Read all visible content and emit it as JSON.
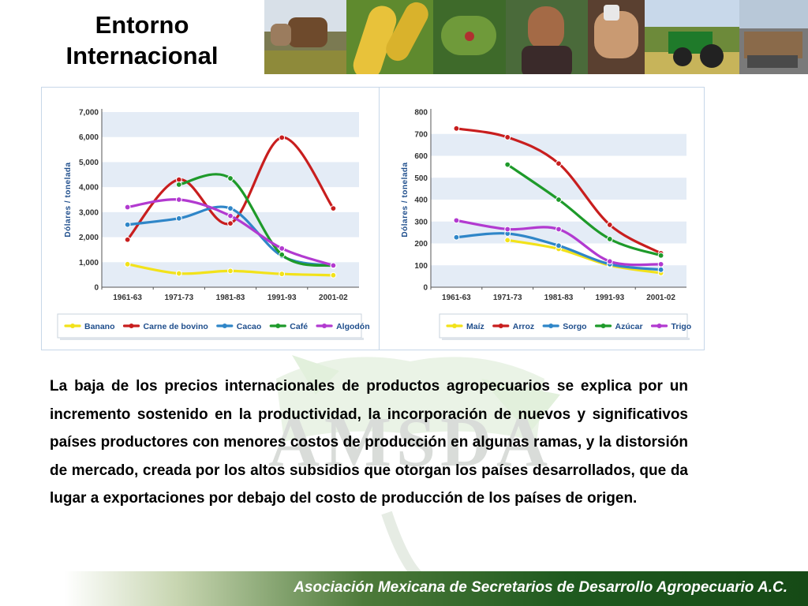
{
  "slide": {
    "title_line1": "Entorno",
    "title_line2": "Internacional",
    "body": "La baja de los precios internacionales de productos agropecuarios se explica por un incremento sostenido en la productividad, la incorporación de nuevos y significativos países productores con menores costos de producción en algunas ramas, y la distorsión de mercado, creada por los altos subsidios que otorgan los países desarrollados, que da lugar a exportaciones por debajo del costo de producción de los países de origen.",
    "footer": "Asociación Mexicana de Secretarios de Desarrollo Agropecuario A.C.",
    "watermark_text": "AMSDA"
  },
  "banner": {
    "photos": [
      "cattle",
      "corn",
      "coffee-plant",
      "farmer-woman",
      "coffee-beans-hands",
      "tractor",
      "cargo-port"
    ]
  },
  "colors": {
    "yellow": "#f2e21a",
    "red": "#c81e1e",
    "blue": "#2f86c8",
    "green": "#1e9a2a",
    "purple": "#b23ad0",
    "band": "#e4ecf6",
    "axis_label": "#1f4e8c",
    "footer_green": "#1f5a1f"
  },
  "chart_data": [
    {
      "type": "line",
      "ylabel": "Dólares / tonelada",
      "ylim": [
        0,
        7000
      ],
      "yticks": [
        "0",
        "1,000",
        "2,000",
        "3,000",
        "4,000",
        "5,000",
        "6,000",
        "7,000"
      ],
      "categories": [
        "1961-63",
        "1971-73",
        "1981-83",
        "1991-93",
        "2001-02"
      ],
      "legend": "bottom",
      "grid": "horizontal bands",
      "series": [
        {
          "name": "Banano",
          "color": "#f2e21a",
          "values": [
            920,
            550,
            650,
            530,
            480
          ]
        },
        {
          "name": "Carne de bovino",
          "color": "#c81e1e",
          "values": [
            1900,
            4300,
            2550,
            5980,
            3150
          ]
        },
        {
          "name": "Cacao",
          "color": "#2f86c8",
          "values": [
            2500,
            2750,
            3150,
            1250,
            850
          ]
        },
        {
          "name": "Café",
          "color": "#1e9a2a",
          "values": [
            null,
            4100,
            4350,
            1300,
            850
          ]
        },
        {
          "name": "Algodón",
          "color": "#b23ad0",
          "values": [
            3200,
            3500,
            2850,
            1550,
            870
          ]
        }
      ]
    },
    {
      "type": "line",
      "ylabel": "Dólares / tonelada",
      "ylim": [
        0,
        800
      ],
      "yticks": [
        "0",
        "100",
        "200",
        "300",
        "400",
        "500",
        "600",
        "700",
        "800"
      ],
      "categories": [
        "1961-63",
        "1971-73",
        "1981-83",
        "1991-93",
        "2001-02"
      ],
      "legend": "bottom",
      "grid": "horizontal bands",
      "series": [
        {
          "name": "Maíz",
          "color": "#f2e21a",
          "values": [
            null,
            215,
            175,
            100,
            65
          ]
        },
        {
          "name": "Arroz",
          "color": "#c81e1e",
          "values": [
            725,
            685,
            565,
            285,
            155
          ]
        },
        {
          "name": "Sorgo",
          "color": "#2f86c8",
          "values": [
            228,
            245,
            190,
            105,
            80
          ]
        },
        {
          "name": "Azúcar",
          "color": "#1e9a2a",
          "values": [
            null,
            560,
            400,
            220,
            145
          ]
        },
        {
          "name": "Trigo",
          "color": "#b23ad0",
          "values": [
            305,
            265,
            265,
            118,
            105
          ]
        }
      ]
    }
  ]
}
